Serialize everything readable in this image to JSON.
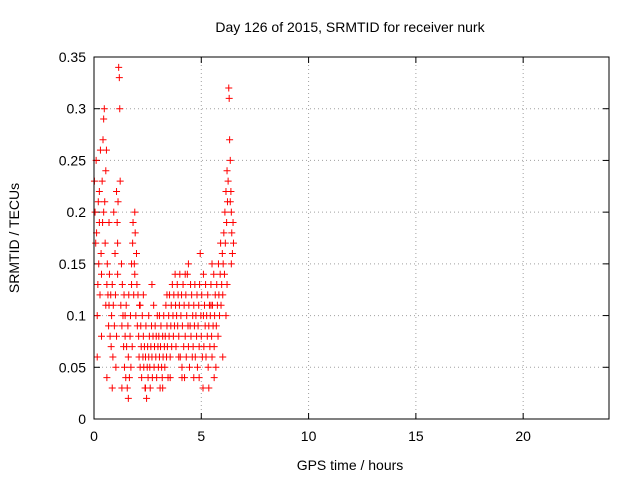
{
  "chart_data": {
    "type": "scatter",
    "title": "Day 126 of 2015, SRMTID for receiver nurk",
    "xlabel": "GPS time / hours",
    "ylabel": "SRMTID / TECUs",
    "xlim": [
      0,
      24
    ],
    "ylim": [
      0,
      0.35
    ],
    "xticks": [
      0,
      5,
      10,
      15,
      20
    ],
    "yticks": [
      0,
      0.05,
      0.1,
      0.15,
      0.2,
      0.25,
      0.3,
      0.35
    ],
    "ytick_labels": [
      "0",
      "0.05",
      "0.1",
      "0.15",
      "0.2",
      "0.25",
      "0.3",
      "0.35"
    ],
    "xtick_labels": [
      "0",
      "5",
      "10",
      "15",
      "20"
    ],
    "grid": true,
    "marker": "plus",
    "series": [
      {
        "color": "#ff0000",
        "points": [
          [
            0.02,
            0.23
          ],
          [
            0.05,
            0.2
          ],
          [
            0.08,
            0.17
          ],
          [
            0.1,
            0.25
          ],
          [
            0.12,
            0.18
          ],
          [
            0.15,
            0.1
          ],
          [
            0.18,
            0.13
          ],
          [
            0.2,
            0.21
          ],
          [
            0.22,
            0.15
          ],
          [
            0.25,
            0.19
          ],
          [
            0.28,
            0.12
          ],
          [
            0.3,
            0.26
          ],
          [
            0.33,
            0.16
          ],
          [
            0.35,
            0.14
          ],
          [
            0.38,
            0.23
          ],
          [
            0.4,
            0.19
          ],
          [
            0.42,
            0.27
          ],
          [
            0.45,
            0.29
          ],
          [
            0.48,
            0.3
          ],
          [
            0.5,
            0.21
          ],
          [
            0.52,
            0.17
          ],
          [
            0.55,
            0.24
          ],
          [
            0.58,
            0.26
          ],
          [
            0.6,
            0.13
          ],
          [
            0.62,
            0.15
          ],
          [
            0.65,
            0.12
          ],
          [
            0.68,
            0.09
          ],
          [
            0.7,
            0.11
          ],
          [
            0.72,
            0.14
          ],
          [
            0.75,
            0.08
          ],
          [
            0.78,
            0.12
          ],
          [
            0.8,
            0.07
          ],
          [
            0.82,
            0.1
          ],
          [
            0.85,
            0.13
          ],
          [
            0.88,
            0.06
          ],
          [
            0.9,
            0.11
          ],
          [
            0.92,
            0.2
          ],
          [
            0.95,
            0.09
          ],
          [
            0.98,
            0.16
          ],
          [
            1.0,
            0.12
          ],
          [
            1.02,
            0.05
          ],
          [
            1.05,
            0.08
          ],
          [
            1.08,
            0.19
          ],
          [
            1.1,
            0.14
          ],
          [
            1.12,
            0.21
          ],
          [
            1.15,
            0.34
          ],
          [
            1.18,
            0.33
          ],
          [
            1.2,
            0.3
          ],
          [
            1.22,
            0.23
          ],
          [
            1.25,
            0.11
          ],
          [
            1.28,
            0.15
          ],
          [
            1.3,
            0.09
          ],
          [
            1.32,
            0.13
          ],
          [
            1.35,
            0.1
          ],
          [
            1.38,
            0.07
          ],
          [
            1.4,
            0.12
          ],
          [
            1.42,
            0.05
          ],
          [
            1.45,
            0.08
          ],
          [
            1.48,
            0.04
          ],
          [
            1.5,
            0.11
          ],
          [
            1.52,
            0.07
          ],
          [
            1.55,
            0.03
          ],
          [
            1.58,
            0.09
          ],
          [
            1.6,
            0.06
          ],
          [
            1.62,
            0.12
          ],
          [
            1.65,
            0.04
          ],
          [
            1.68,
            0.08
          ],
          [
            1.7,
            0.1
          ],
          [
            1.72,
            0.05
          ],
          [
            1.75,
            0.13
          ],
          [
            1.78,
            0.07
          ],
          [
            1.8,
            0.17
          ],
          [
            1.82,
            0.19
          ],
          [
            1.85,
            0.12
          ],
          [
            1.88,
            0.15
          ],
          [
            1.9,
            0.2
          ],
          [
            1.92,
            0.18
          ],
          [
            1.95,
            0.1
          ],
          [
            1.98,
            0.16
          ],
          [
            2.0,
            0.13
          ],
          [
            2.02,
            0.09
          ],
          [
            2.05,
            0.12
          ],
          [
            2.08,
            0.08
          ],
          [
            2.1,
            0.06
          ],
          [
            2.12,
            0.11
          ],
          [
            2.15,
            0.05
          ],
          [
            2.18,
            0.09
          ],
          [
            2.2,
            0.07
          ],
          [
            2.22,
            0.04
          ],
          [
            2.25,
            0.1
          ],
          [
            2.28,
            0.06
          ],
          [
            2.3,
            0.08
          ],
          [
            2.32,
            0.05
          ],
          [
            2.35,
            0.07
          ],
          [
            2.38,
            0.03
          ],
          [
            2.4,
            0.06
          ],
          [
            2.42,
            0.09
          ],
          [
            2.45,
            0.02
          ],
          [
            2.48,
            0.05
          ],
          [
            2.5,
            0.07
          ],
          [
            2.52,
            0.04
          ],
          [
            2.55,
            0.06
          ],
          [
            2.58,
            0.08
          ],
          [
            2.6,
            0.05
          ],
          [
            2.62,
            0.03
          ],
          [
            2.65,
            0.07
          ],
          [
            2.68,
            0.09
          ],
          [
            2.7,
            0.06
          ],
          [
            2.72,
            0.04
          ],
          [
            2.75,
            0.08
          ],
          [
            2.78,
            0.11
          ],
          [
            2.8,
            0.05
          ],
          [
            2.82,
            0.07
          ],
          [
            2.85,
            0.09
          ],
          [
            2.88,
            0.06
          ],
          [
            2.9,
            0.08
          ],
          [
            2.92,
            0.04
          ],
          [
            2.95,
            0.1
          ],
          [
            2.98,
            0.07
          ],
          [
            3.0,
            0.05
          ],
          [
            3.02,
            0.08
          ],
          [
            3.05,
            0.06
          ],
          [
            3.08,
            0.03
          ],
          [
            3.1,
            0.07
          ],
          [
            3.12,
            0.09
          ],
          [
            3.15,
            0.05
          ],
          [
            3.18,
            0.04
          ],
          [
            3.2,
            0.08
          ],
          [
            3.22,
            0.06
          ],
          [
            3.25,
            0.1
          ],
          [
            3.28,
            0.07
          ],
          [
            3.3,
            0.05
          ],
          [
            3.32,
            0.08
          ],
          [
            3.35,
            0.11
          ],
          [
            3.38,
            0.06
          ],
          [
            3.4,
            0.09
          ],
          [
            3.42,
            0.07
          ],
          [
            3.45,
            0.04
          ],
          [
            3.48,
            0.1
          ],
          [
            3.5,
            0.08
          ],
          [
            3.52,
            0.12
          ],
          [
            3.55,
            0.06
          ],
          [
            3.58,
            0.09
          ],
          [
            3.6,
            0.11
          ],
          [
            3.62,
            0.07
          ],
          [
            3.65,
            0.13
          ],
          [
            3.68,
            0.1
          ],
          [
            3.7,
            0.08
          ],
          [
            3.72,
            0.12
          ],
          [
            3.75,
            0.09
          ],
          [
            3.78,
            0.14
          ],
          [
            3.8,
            0.11
          ],
          [
            3.82,
            0.07
          ],
          [
            3.85,
            0.1
          ],
          [
            3.88,
            0.13
          ],
          [
            3.9,
            0.09
          ],
          [
            3.92,
            0.12
          ],
          [
            3.95,
            0.08
          ],
          [
            3.98,
            0.11
          ],
          [
            4.0,
            0.14
          ],
          [
            4.02,
            0.06
          ],
          [
            4.05,
            0.1
          ],
          [
            4.08,
            0.12
          ],
          [
            4.1,
            0.05
          ],
          [
            4.12,
            0.09
          ],
          [
            4.15,
            0.13
          ],
          [
            4.18,
            0.07
          ],
          [
            4.2,
            0.11
          ],
          [
            4.22,
            0.04
          ],
          [
            4.25,
            0.08
          ],
          [
            4.28,
            0.12
          ],
          [
            4.3,
            0.06
          ],
          [
            4.32,
            0.1
          ],
          [
            4.35,
            0.14
          ],
          [
            4.38,
            0.09
          ],
          [
            4.4,
            0.07
          ],
          [
            4.42,
            0.11
          ],
          [
            4.45,
            0.05
          ],
          [
            4.48,
            0.09
          ],
          [
            4.5,
            0.13
          ],
          [
            4.52,
            0.08
          ],
          [
            4.55,
            0.12
          ],
          [
            4.58,
            0.06
          ],
          [
            4.6,
            0.1
          ],
          [
            4.62,
            0.07
          ],
          [
            4.65,
            0.11
          ],
          [
            4.68,
            0.09
          ],
          [
            4.7,
            0.13
          ],
          [
            4.72,
            0.06
          ],
          [
            4.75,
            0.1
          ],
          [
            4.78,
            0.08
          ],
          [
            4.8,
            0.12
          ],
          [
            4.82,
            0.05
          ],
          [
            4.85,
            0.09
          ],
          [
            4.88,
            0.11
          ],
          [
            4.9,
            0.07
          ],
          [
            4.92,
            0.13
          ],
          [
            4.95,
            0.16
          ],
          [
            4.98,
            0.1
          ],
          [
            5.0,
            0.08
          ],
          [
            5.02,
            0.12
          ],
          [
            5.05,
            0.06
          ],
          [
            5.08,
            0.03
          ],
          [
            5.1,
            0.1
          ],
          [
            5.12,
            0.07
          ],
          [
            5.15,
            0.11
          ],
          [
            5.18,
            0.09
          ],
          [
            5.2,
            0.13
          ],
          [
            5.22,
            0.06
          ],
          [
            5.25,
            0.1
          ],
          [
            5.28,
            0.08
          ],
          [
            5.3,
            0.12
          ],
          [
            5.32,
            0.05
          ],
          [
            5.35,
            0.09
          ],
          [
            5.38,
            0.11
          ],
          [
            5.4,
            0.07
          ],
          [
            5.42,
            0.1
          ],
          [
            5.45,
            0.13
          ],
          [
            5.48,
            0.08
          ],
          [
            5.5,
            0.06
          ],
          [
            5.52,
            0.11
          ],
          [
            5.55,
            0.09
          ],
          [
            5.58,
            0.14
          ],
          [
            5.6,
            0.07
          ],
          [
            5.62,
            0.1
          ],
          [
            5.65,
            0.12
          ],
          [
            5.68,
            0.05
          ],
          [
            5.7,
            0.09
          ],
          [
            5.72,
            0.13
          ],
          [
            5.75,
            0.11
          ],
          [
            5.78,
            0.08
          ],
          [
            5.8,
            0.15
          ],
          [
            5.82,
            0.12
          ],
          [
            5.85,
            0.1
          ],
          [
            5.88,
            0.14
          ],
          [
            5.9,
            0.17
          ],
          [
            5.92,
            0.11
          ],
          [
            5.95,
            0.13
          ],
          [
            5.98,
            0.16
          ],
          [
            6.0,
            0.12
          ],
          [
            6.02,
            0.15
          ],
          [
            6.05,
            0.18
          ],
          [
            6.08,
            0.14
          ],
          [
            6.1,
            0.2
          ],
          [
            6.12,
            0.17
          ],
          [
            6.15,
            0.22
          ],
          [
            6.18,
            0.19
          ],
          [
            6.2,
            0.24
          ],
          [
            6.22,
            0.21
          ],
          [
            6.25,
            0.23
          ],
          [
            6.28,
            0.32
          ],
          [
            6.3,
            0.31
          ],
          [
            6.32,
            0.27
          ],
          [
            6.35,
            0.25
          ],
          [
            6.38,
            0.22
          ],
          [
            6.4,
            0.2
          ],
          [
            6.42,
            0.18
          ],
          [
            6.45,
            0.16
          ],
          [
            6.48,
            0.19
          ],
          [
            6.5,
            0.17
          ],
          [
            0.15,
            0.06
          ],
          [
            0.35,
            0.08
          ],
          [
            0.6,
            0.04
          ],
          [
            0.85,
            0.03
          ],
          [
            1.3,
            0.03
          ],
          [
            1.6,
            0.02
          ],
          [
            2.4,
            0.03
          ],
          [
            3.2,
            0.03
          ],
          [
            4.1,
            0.04
          ],
          [
            4.9,
            0.04
          ],
          [
            5.6,
            0.04
          ],
          [
            6.0,
            0.06
          ],
          [
            0.45,
            0.2
          ],
          [
            0.7,
            0.19
          ],
          [
            1.1,
            0.17
          ],
          [
            1.9,
            0.14
          ],
          [
            2.3,
            0.12
          ],
          [
            2.7,
            0.13
          ],
          [
            3.4,
            0.12
          ],
          [
            4.4,
            0.15
          ],
          [
            5.1,
            0.14
          ],
          [
            5.5,
            0.15
          ],
          [
            6.2,
            0.13
          ],
          [
            0.25,
            0.22
          ],
          [
            1.05,
            0.22
          ],
          [
            1.75,
            0.15
          ],
          [
            2.15,
            0.11
          ],
          [
            3.05,
            0.1
          ],
          [
            3.95,
            0.06
          ],
          [
            4.65,
            0.04
          ],
          [
            5.35,
            0.03
          ],
          [
            6.15,
            0.1
          ],
          [
            6.4,
            0.15
          ],
          [
            0.55,
            0.11
          ],
          [
            1.45,
            0.1
          ],
          [
            2.55,
            0.1
          ],
          [
            3.55,
            0.04
          ],
          [
            4.25,
            0.14
          ],
          [
            5.45,
            0.11
          ],
          [
            6.35,
            0.21
          ]
        ]
      }
    ]
  }
}
